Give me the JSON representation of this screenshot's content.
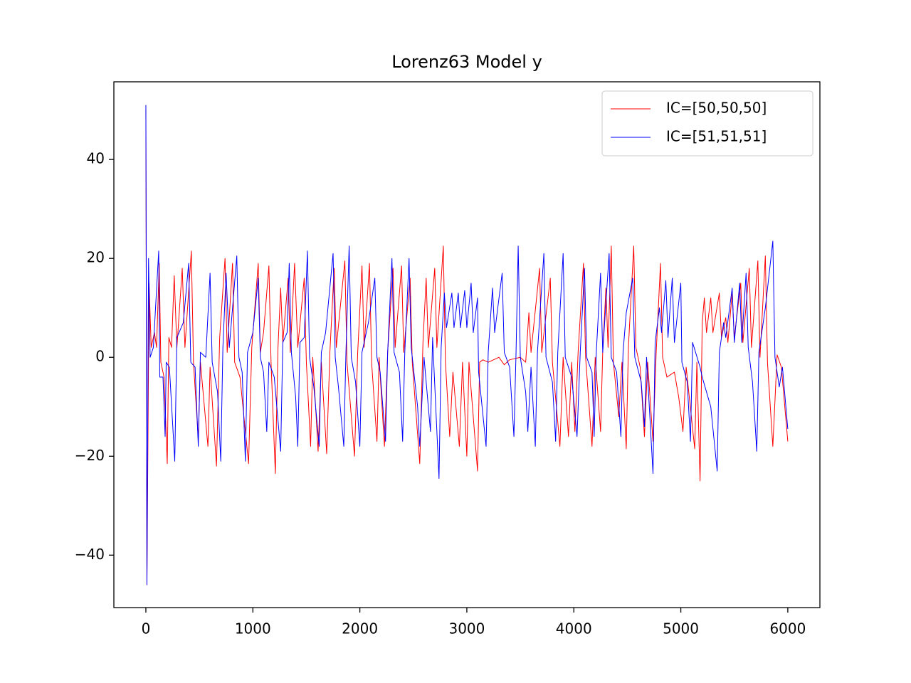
{
  "chart_data": {
    "type": "line",
    "title": "Lorenz63 Model y",
    "xlim": [
      -299,
      6300
    ],
    "ylim": [
      -50.6,
      55.7
    ],
    "xticks": [
      0,
      1000,
      2000,
      3000,
      4000,
      5000,
      6000
    ],
    "yticks": [
      {
        "value": -40,
        "label": "−40"
      },
      {
        "value": -20,
        "label": "−20"
      },
      0,
      20,
      40
    ],
    "grid": false,
    "legend": "upper right",
    "series": [
      {
        "name": "IC=[50,50,50]",
        "color": "#ff0000",
        "x": [
          0,
          10,
          30,
          50,
          80,
          100,
          125,
          140,
          170,
          200,
          215,
          240,
          265,
          290,
          340,
          365,
          425,
          445,
          490,
          510,
          580,
          600,
          660,
          690,
          740,
          760,
          810,
          830,
          880,
          960,
          990,
          1050,
          1070,
          1100,
          1150,
          1170,
          1210,
          1235,
          1260,
          1280,
          1330,
          1350,
          1390,
          1420,
          1480,
          1500,
          1540,
          1560,
          1610,
          1640,
          1690,
          1720,
          1760,
          1780,
          1860,
          1880,
          1950,
          1980,
          2020,
          2040,
          2090,
          2110,
          2160,
          2180,
          2230,
          2260,
          2310,
          2330,
          2390,
          2410,
          2470,
          2490,
          2560,
          2590,
          2620,
          2640,
          2700,
          2720,
          2780,
          2800,
          2840,
          2870,
          2930,
          2960,
          3000,
          3020,
          3100,
          3120,
          3150,
          3200,
          3300,
          3350,
          3400,
          3500,
          3550,
          3580,
          3600,
          3680,
          3700,
          3780,
          3800,
          3870,
          3900,
          3950,
          3980,
          4010,
          4040,
          4090,
          4110,
          4170,
          4200,
          4250,
          4270,
          4300,
          4320,
          4350,
          4370,
          4420,
          4450,
          4490,
          4510,
          4560,
          4580,
          4620,
          4660,
          4690,
          4740,
          4770,
          4810,
          4830,
          4870,
          4940,
          4980,
          5020,
          5050,
          5130,
          5150,
          5180,
          5200,
          5220,
          5240,
          5280,
          5300,
          5360,
          5380,
          5420,
          5440,
          5480,
          5500,
          5560,
          5580,
          5640,
          5660,
          5720,
          5740,
          5790,
          5810,
          5860,
          5900,
          5940,
          6000
        ],
        "values": [
          50,
          -46,
          15,
          2,
          5,
          2,
          19,
          -1,
          -4,
          -21.5,
          4,
          2,
          16.5,
          2,
          18,
          2,
          21.5,
          -1,
          -16.5,
          -1,
          -18,
          -2,
          -22,
          4,
          20,
          1,
          19,
          -1,
          -4,
          -21.5,
          2,
          19,
          1,
          5,
          18.5,
          -1,
          -23.5,
          2,
          14,
          3,
          16,
          1,
          19,
          2,
          16,
          -1,
          -18,
          0,
          -19,
          -1,
          -19.5,
          1,
          18,
          2,
          19.5,
          -1,
          -20,
          1,
          18.5,
          2,
          19,
          -1,
          -17,
          0,
          -18,
          1,
          18,
          2,
          18.5,
          1,
          16,
          -1,
          -21.5,
          3,
          16,
          2,
          18,
          2,
          22.5,
          -1,
          -16,
          -3,
          -18,
          -1,
          -20,
          -1,
          -23,
          -1,
          -0.5,
          -1,
          0,
          -1.5,
          -0.5,
          0,
          -1,
          9,
          1,
          18,
          1,
          16,
          -1,
          -18,
          0,
          -16,
          -1,
          -15,
          1,
          19,
          0,
          -18,
          0,
          -15,
          1,
          14,
          2,
          22.5,
          -1,
          -12,
          -1,
          -18.5,
          2,
          22.5,
          2,
          -2,
          -16,
          -1,
          -17,
          1,
          19,
          0,
          -4,
          -3,
          -8,
          -15,
          -2,
          -18.5,
          -1,
          -25,
          7,
          12,
          5,
          12,
          5,
          13,
          4,
          8,
          3,
          13,
          4,
          15,
          3,
          18,
          2,
          19.5,
          0,
          20.5,
          -1,
          -18,
          0.5,
          -2,
          -17
        ]
      },
      {
        "name": "IC=[51,51,51]",
        "color": "#0000ff",
        "x": [
          0,
          10,
          25,
          40,
          70,
          120,
          130,
          160,
          180,
          190,
          220,
          270,
          290,
          350,
          400,
          420,
          460,
          490,
          510,
          560,
          600,
          620,
          670,
          700,
          720,
          750,
          780,
          850,
          870,
          900,
          930,
          950,
          1000,
          1050,
          1070,
          1100,
          1130,
          1150,
          1200,
          1260,
          1280,
          1320,
          1340,
          1360,
          1400,
          1420,
          1440,
          1480,
          1510,
          1530,
          1570,
          1620,
          1640,
          1680,
          1750,
          1770,
          1800,
          1850,
          1870,
          1900,
          1920,
          1960,
          2000,
          2020,
          2080,
          2140,
          2160,
          2190,
          2240,
          2260,
          2300,
          2320,
          2370,
          2400,
          2420,
          2460,
          2480,
          2540,
          2560,
          2600,
          2660,
          2680,
          2740,
          2760,
          2790,
          2810,
          2860,
          2880,
          2920,
          2940,
          2980,
          3000,
          3040,
          3060,
          3100,
          3110,
          3180,
          3200,
          3240,
          3260,
          3330,
          3350,
          3400,
          3440,
          3460,
          3480,
          3500,
          3550,
          3570,
          3600,
          3640,
          3660,
          3720,
          3740,
          3800,
          3830,
          3850,
          3900,
          3920,
          3980,
          4030,
          4060,
          4100,
          4120,
          4170,
          4190,
          4210,
          4250,
          4270,
          4330,
          4350,
          4400,
          4440,
          4460,
          4490,
          4550,
          4570,
          4630,
          4660,
          4680,
          4740,
          4760,
          4800,
          4820,
          4860,
          4880,
          4920,
          4940,
          5000,
          5010,
          5060,
          5090,
          5110,
          5180,
          5200,
          5280,
          5340,
          5360,
          5400,
          5420,
          5480,
          5500,
          5550,
          5570,
          5610,
          5630,
          5670,
          5710,
          5730,
          5790,
          5860,
          5880,
          5920,
          5950,
          5970,
          6000
        ],
        "values": [
          51,
          -46,
          20,
          0,
          2,
          21.5,
          -4,
          -4,
          -16,
          -1,
          -2,
          -21,
          4,
          7,
          19,
          -1,
          -2,
          -18,
          1,
          0,
          17,
          -1,
          -7,
          -21,
          2,
          17,
          2,
          20.5,
          0,
          -3,
          -21,
          1,
          5,
          16,
          0,
          -3,
          -15,
          -1,
          -4,
          -19,
          3,
          5,
          19,
          1,
          -8,
          -18,
          3,
          4,
          21.5,
          0,
          -6,
          -18,
          1,
          5,
          21,
          0,
          -6,
          -18,
          1,
          22.5,
          0,
          -5,
          -18,
          1,
          7,
          16,
          0,
          -3,
          -17,
          1,
          20,
          1,
          -3,
          -17,
          1,
          20,
          2,
          -10,
          -18,
          0,
          -15,
          4,
          -24.5,
          2,
          13,
          6,
          13,
          6,
          13,
          6,
          13.5,
          6,
          15,
          5,
          12,
          -3,
          -18,
          1,
          14,
          5,
          17,
          1,
          -2,
          -16,
          1,
          22.5,
          0,
          -7,
          -15,
          -2,
          -18,
          1,
          21,
          0,
          -5,
          -17,
          1,
          21,
          0,
          -4,
          -16,
          1,
          18,
          0,
          -3,
          -16,
          1,
          17,
          1,
          21,
          0,
          -3,
          -16,
          1,
          9,
          16,
          0,
          -5,
          -14,
          0,
          -23.5,
          3,
          10,
          5,
          15.5,
          4,
          16,
          3,
          15,
          -1,
          -5,
          -17,
          3,
          -2,
          -4,
          -10,
          -23,
          1,
          7,
          4,
          14,
          3,
          15,
          3,
          17,
          2,
          -5,
          -19,
          1,
          10,
          23.5,
          0,
          -6,
          -2,
          -7,
          -14.5
        ]
      }
    ]
  }
}
